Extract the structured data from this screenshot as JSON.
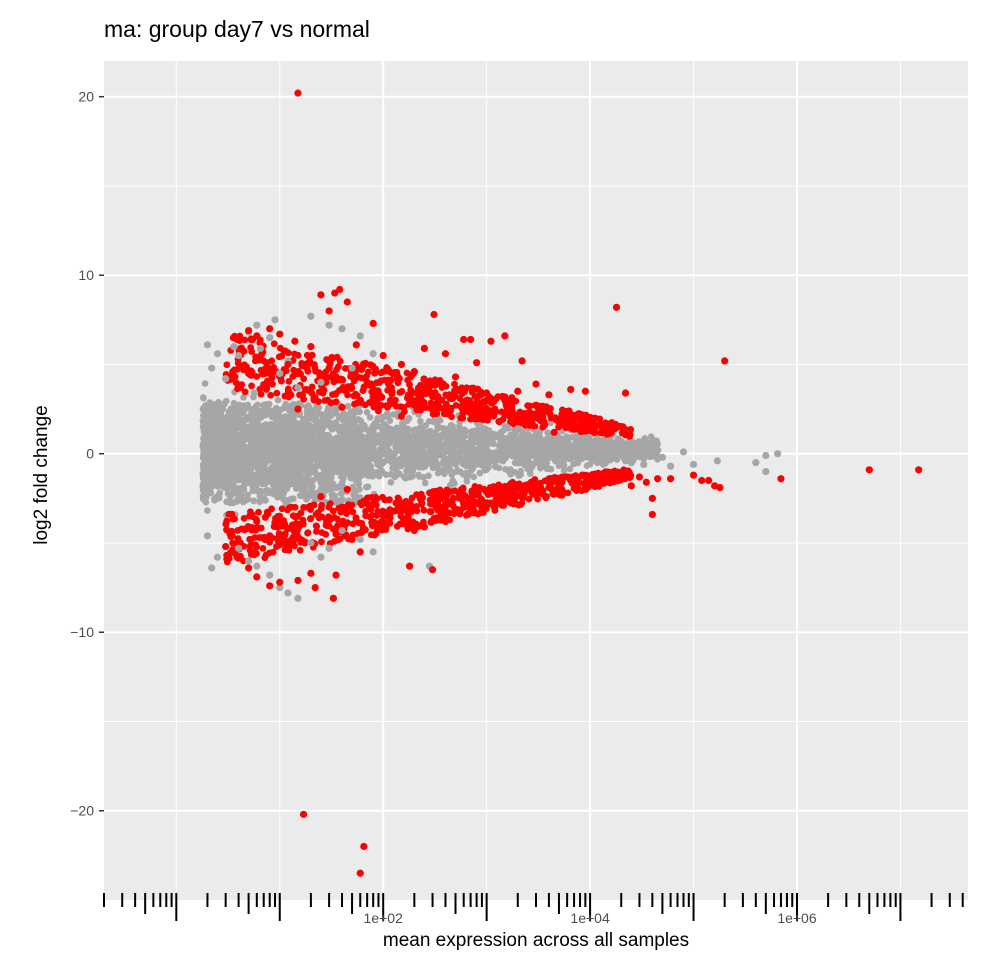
{
  "chart_data": {
    "type": "scatter",
    "title": "ma: group day7 vs normal",
    "xlabel": "mean expression across all samples",
    "ylabel": "log2 fold change",
    "x_scale": "log10",
    "xlim": [
      0.2,
      45000000
    ],
    "ylim": [
      -25,
      22
    ],
    "x_ticks": [
      {
        "value": 100,
        "label": "1e+02"
      },
      {
        "value": 10000,
        "label": "1e+04"
      },
      {
        "value": 1000000,
        "label": "1e+06"
      }
    ],
    "y_ticks": [
      {
        "value": 20,
        "label": "20"
      },
      {
        "value": 10,
        "label": "10"
      },
      {
        "value": 0,
        "label": "0"
      },
      {
        "value": -10,
        "label": "−10"
      },
      {
        "value": -20,
        "label": "−20"
      }
    ],
    "grid": true,
    "rug": "x-axis log ticks",
    "colors": {
      "significant": "#ff0000",
      "not_significant": "#a6a6a6",
      "panel": "#ebebeb",
      "grid": "#ffffff"
    },
    "series": [
      {
        "color": "#a6a6a6",
        "values": [
          [
            2.0,
            6.1
          ],
          [
            2.5,
            5.6
          ],
          [
            2.2,
            4.8
          ],
          [
            3.0,
            4.2
          ],
          [
            3.6,
            6.0
          ],
          [
            4.0,
            5.5
          ],
          [
            5.0,
            6.8
          ],
          [
            6.0,
            7.2
          ],
          [
            8.0,
            6.5
          ],
          [
            6.5,
            5.9
          ],
          [
            12,
            5.2
          ],
          [
            10,
            4.5
          ],
          [
            9,
            7.5
          ],
          [
            20,
            7.7
          ],
          [
            30,
            7.2
          ],
          [
            40,
            7.0
          ],
          [
            60,
            6.6
          ],
          [
            80,
            5.6
          ],
          [
            50,
            4.8
          ],
          [
            25,
            4.0
          ],
          [
            15,
            3.7
          ],
          [
            2.0,
            -4.6
          ],
          [
            2.5,
            -5.8
          ],
          [
            3.0,
            -5.2
          ],
          [
            2.2,
            -6.4
          ],
          [
            4.0,
            -5.3
          ],
          [
            5.0,
            -6.0
          ],
          [
            6.0,
            -6.3
          ],
          [
            8.0,
            -6.8
          ],
          [
            10,
            -7.5
          ],
          [
            15,
            -8.1
          ],
          [
            12,
            -7.8
          ],
          [
            20,
            -5.0
          ],
          [
            30,
            -5.3
          ],
          [
            40,
            -4.3
          ],
          [
            60,
            -4.8
          ],
          [
            80,
            -5.5
          ],
          [
            25,
            -5.8
          ],
          [
            280,
            -6.3
          ],
          [
            2000,
            1.4
          ],
          [
            3000,
            1.2
          ],
          [
            5000,
            0.9
          ],
          [
            6000,
            0.7
          ],
          [
            8000,
            0.8
          ],
          [
            10000,
            0.4
          ],
          [
            12000,
            0.1
          ],
          [
            15000,
            -0.3
          ],
          [
            18000,
            0.0
          ],
          [
            22000,
            -0.4
          ],
          [
            25000,
            -0.5
          ],
          [
            28000,
            -0.1
          ],
          [
            33000,
            -0.6
          ],
          [
            45000,
            0.2
          ],
          [
            60000,
            -0.7
          ],
          [
            80000,
            0.1
          ],
          [
            100000,
            -0.6
          ],
          [
            170000,
            -0.4
          ],
          [
            400000,
            -0.5
          ],
          [
            500000,
            -0.1
          ],
          [
            500000,
            -1.0
          ],
          [
            650000,
            0.0
          ],
          [
            50000,
            -0.2
          ]
        ]
      },
      {
        "color": "#ff0000",
        "values": [
          [
            15,
            20.2
          ],
          [
            30,
            8.0
          ],
          [
            38,
            9.2
          ],
          [
            34,
            9.0
          ],
          [
            45,
            8.5
          ],
          [
            25,
            8.9
          ],
          [
            80,
            7.3
          ],
          [
            310,
            7.8
          ],
          [
            1500,
            6.6
          ],
          [
            1100,
            6.3
          ],
          [
            700,
            6.4
          ],
          [
            600,
            6.4
          ],
          [
            5.0,
            6.9
          ],
          [
            6.0,
            6.6
          ],
          [
            8.0,
            7.0
          ],
          [
            10,
            6.7
          ],
          [
            14,
            6.3
          ],
          [
            20,
            6.0
          ],
          [
            55,
            6.1
          ],
          [
            100,
            5.5
          ],
          [
            150,
            5.0
          ],
          [
            200,
            4.6
          ],
          [
            250,
            5.9
          ],
          [
            400,
            5.6
          ],
          [
            500,
            4.3
          ],
          [
            800,
            5.1
          ],
          [
            2200,
            5.2
          ],
          [
            6500,
            3.6
          ],
          [
            9000,
            3.5
          ],
          [
            4000,
            3.3
          ],
          [
            3000,
            3.9
          ],
          [
            2000,
            3.5
          ],
          [
            1500,
            3.0
          ],
          [
            1000,
            3.4
          ],
          [
            5.0,
            4.5
          ],
          [
            8.0,
            4.0
          ],
          [
            12,
            5.0
          ],
          [
            30,
            4.8
          ],
          [
            70,
            4.0
          ],
          [
            120,
            3.7
          ],
          [
            300,
            3.2
          ],
          [
            350,
            2.6
          ],
          [
            600,
            2.4
          ],
          [
            900,
            2.0
          ],
          [
            1200,
            2.5
          ],
          [
            1800,
            1.8
          ],
          [
            2500,
            2.2
          ],
          [
            3500,
            1.5
          ],
          [
            4500,
            1.2
          ],
          [
            15,
            2.5
          ],
          [
            40,
            2.6
          ],
          [
            60,
            3.0
          ],
          [
            90,
            2.4
          ],
          [
            150,
            2.1
          ],
          [
            200,
            2.8
          ],
          [
            18000,
            8.2
          ],
          [
            22000,
            3.4
          ],
          [
            200000,
            5.2
          ],
          [
            17,
            -20.2
          ],
          [
            65,
            -22.0
          ],
          [
            60,
            -23.5
          ],
          [
            33,
            -8.1
          ],
          [
            22,
            -7.5
          ],
          [
            20,
            -6.7
          ],
          [
            15,
            -7.1
          ],
          [
            10,
            -7.2
          ],
          [
            8,
            -7.4
          ],
          [
            6,
            -6.9
          ],
          [
            5,
            -6.4
          ],
          [
            4,
            -5.8
          ],
          [
            3,
            -5.2
          ],
          [
            35,
            -6.8
          ],
          [
            50,
            -4.8
          ],
          [
            60,
            -5.5
          ],
          [
            80,
            -4.0
          ],
          [
            100,
            -3.5
          ],
          [
            130,
            -3.2
          ],
          [
            150,
            -2.8
          ],
          [
            180,
            -6.3
          ],
          [
            300,
            -6.5
          ],
          [
            200,
            -4.3
          ],
          [
            250,
            -4.1
          ],
          [
            400,
            -3.8
          ],
          [
            500,
            -3.3
          ],
          [
            700,
            -2.9
          ],
          [
            900,
            -2.6
          ],
          [
            1200,
            -3.0
          ],
          [
            1500,
            -2.2
          ],
          [
            1800,
            -1.8
          ],
          [
            2200,
            -2.0
          ],
          [
            2700,
            -1.6
          ],
          [
            3300,
            -2.1
          ],
          [
            4000,
            -1.5
          ],
          [
            5000,
            -1.8
          ],
          [
            6000,
            -1.3
          ],
          [
            7000,
            -1.6
          ],
          [
            8500,
            -1.2
          ],
          [
            10000,
            -1.7
          ],
          [
            12000,
            -1.1
          ],
          [
            14000,
            -1.5
          ],
          [
            20000,
            -1.4
          ],
          [
            25000,
            -1.8
          ],
          [
            30000,
            -1.3
          ],
          [
            35000,
            -1.6
          ],
          [
            40000,
            -2.5
          ],
          [
            45000,
            -1.4
          ],
          [
            60000,
            -1.4
          ],
          [
            100000,
            -1.2
          ],
          [
            120000,
            -1.5
          ],
          [
            140000,
            -1.5
          ],
          [
            160000,
            -1.8
          ],
          [
            180000,
            -1.9
          ],
          [
            40000,
            -3.4
          ],
          [
            700000,
            -1.4
          ],
          [
            5000000,
            -0.9
          ],
          [
            15000000,
            -0.9
          ],
          [
            25,
            -2.4
          ],
          [
            40,
            -3.0
          ],
          [
            45,
            -2.0
          ],
          [
            15,
            -3.5
          ],
          [
            12,
            -4.2
          ],
          [
            8,
            -4.6
          ],
          [
            6,
            -3.8
          ]
        ]
      }
    ]
  }
}
